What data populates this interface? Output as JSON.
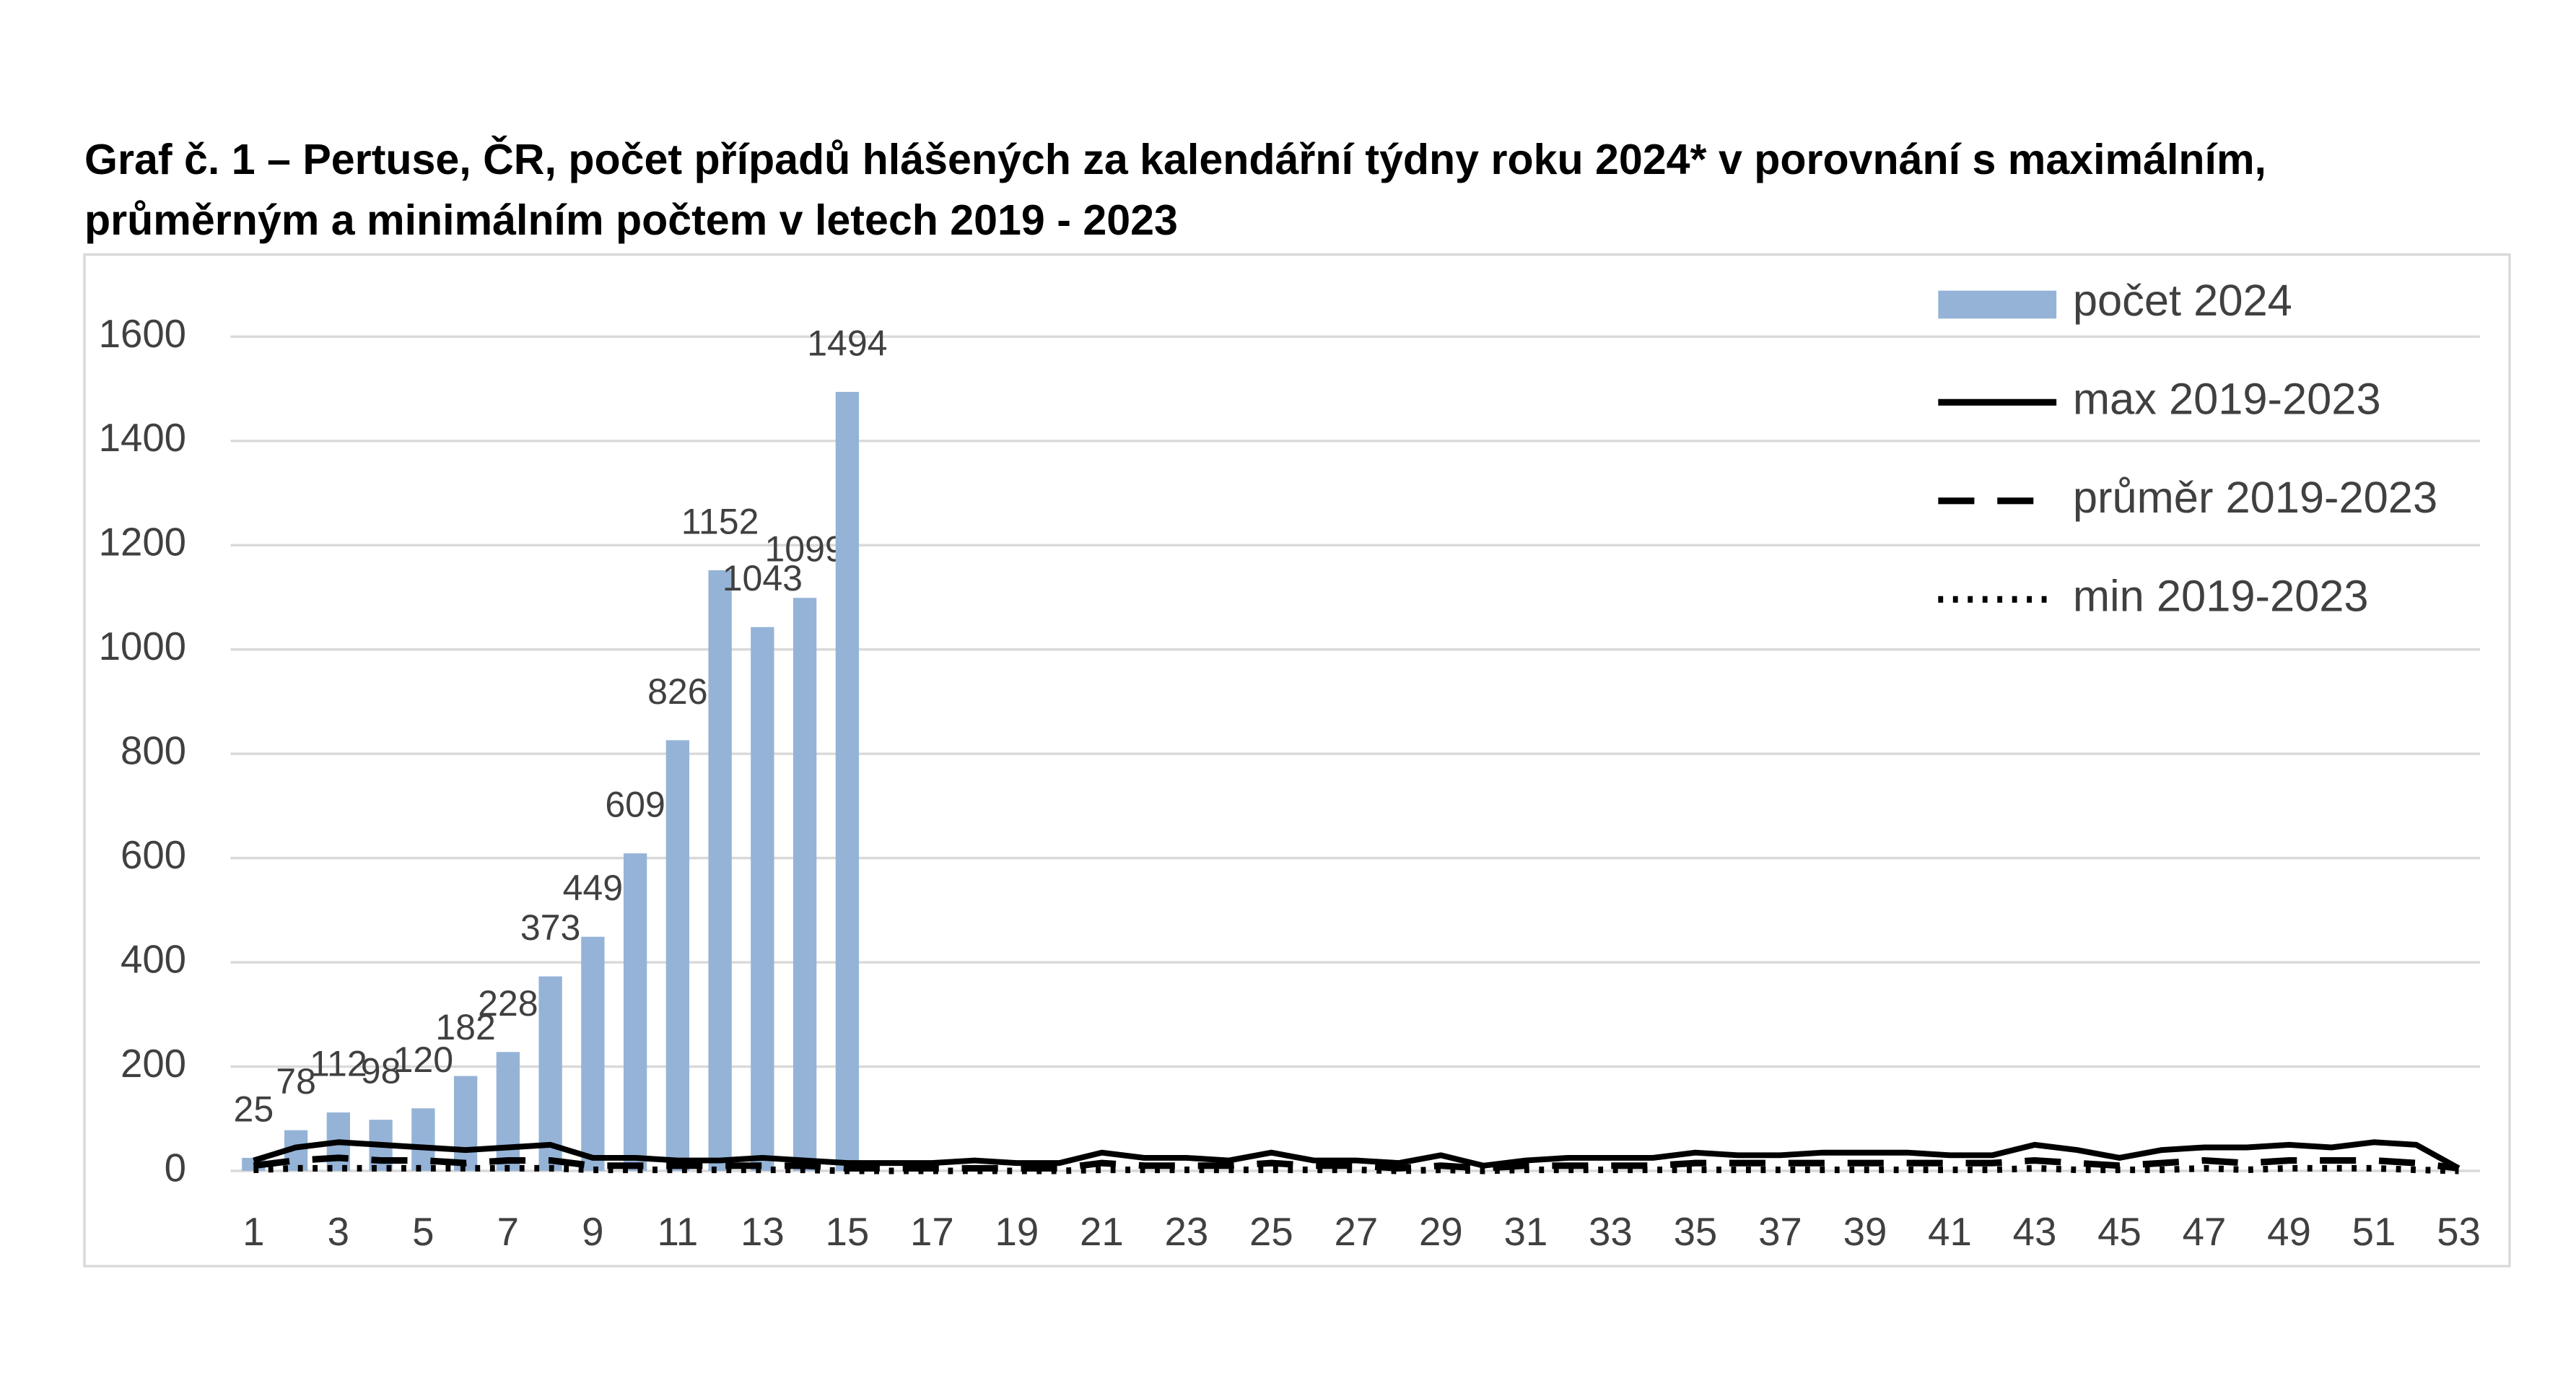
{
  "chart_data": {
    "type": "bar",
    "title": [
      "Graf č. 1 – Pertuse, ČR, počet případů hlášených za kalendářní týdny roku 2024* v porovnání s maximálním,",
      "průměrným a minimálním počtem v letech 2019 - 2023"
    ],
    "categories": [
      1,
      null,
      3,
      null,
      5,
      null,
      7,
      null,
      9,
      null,
      11,
      null,
      13,
      null,
      15,
      null,
      17,
      null,
      19,
      null,
      21,
      null,
      23,
      null,
      25,
      null,
      27,
      null,
      29,
      null,
      31,
      null,
      33,
      null,
      35,
      null,
      37,
      null,
      39,
      null,
      41,
      null,
      43,
      null,
      45,
      null,
      47,
      null,
      49,
      null,
      51,
      null,
      53
    ],
    "series": [
      {
        "name": "počet 2024",
        "type": "bar",
        "color": "#95b3d7",
        "data_labels": true,
        "values": [
          25,
          78,
          112,
          98,
          120,
          182,
          228,
          373,
          449,
          609,
          826,
          1152,
          1043,
          1099,
          1494,
          null,
          null,
          null,
          null,
          null,
          null,
          null,
          null,
          null,
          null,
          null,
          null,
          null,
          null,
          null,
          null,
          null,
          null,
          null,
          null,
          null,
          null,
          null,
          null,
          null,
          null,
          null,
          null,
          null,
          null,
          null,
          null,
          null,
          null,
          null,
          null,
          null,
          null
        ]
      },
      {
        "name": "max 2019-2023",
        "type": "line",
        "dash": "solid",
        "color": "#000000",
        "values": [
          20,
          45,
          55,
          50,
          45,
          40,
          45,
          50,
          25,
          25,
          20,
          20,
          25,
          20,
          15,
          15,
          15,
          20,
          15,
          15,
          35,
          25,
          25,
          20,
          35,
          20,
          20,
          15,
          30,
          10,
          20,
          25,
          25,
          25,
          35,
          30,
          30,
          35,
          35,
          35,
          30,
          30,
          50,
          40,
          25,
          40,
          45,
          45,
          50,
          45,
          55,
          50,
          5
        ]
      },
      {
        "name": "průměr 2019-2023",
        "type": "line",
        "dash": "dashed",
        "color": "#000000",
        "values": [
          10,
          20,
          25,
          20,
          20,
          15,
          20,
          20,
          10,
          10,
          10,
          10,
          10,
          10,
          5,
          5,
          5,
          5,
          5,
          5,
          15,
          10,
          10,
          10,
          15,
          10,
          10,
          5,
          10,
          5,
          10,
          10,
          10,
          10,
          15,
          15,
          15,
          15,
          15,
          15,
          15,
          15,
          20,
          15,
          10,
          15,
          20,
          15,
          20,
          20,
          20,
          15,
          5
        ]
      },
      {
        "name": "min 2019-2023",
        "type": "line",
        "dash": "dotted",
        "color": "#000000",
        "values": [
          2,
          5,
          5,
          5,
          5,
          5,
          5,
          5,
          2,
          2,
          2,
          2,
          2,
          2,
          0,
          0,
          0,
          0,
          0,
          0,
          2,
          2,
          2,
          2,
          2,
          2,
          2,
          0,
          2,
          0,
          2,
          2,
          2,
          2,
          2,
          2,
          2,
          2,
          2,
          2,
          2,
          2,
          5,
          2,
          2,
          2,
          5,
          2,
          5,
          5,
          5,
          2,
          0
        ]
      }
    ],
    "ylim": [
      0,
      1600
    ],
    "yticks": [
      0,
      200,
      400,
      600,
      800,
      1000,
      1200,
      1400,
      1600
    ],
    "grid": true,
    "legend": "top-right"
  }
}
